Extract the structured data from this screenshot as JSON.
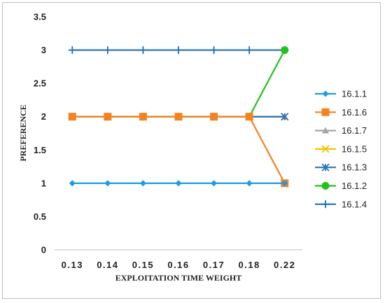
{
  "chart_data": {
    "type": "line",
    "title": "",
    "xlabel": "EXPLOITATION TIME  WEIGHT",
    "ylabel": "PREFERENCE",
    "categories": [
      "0.13",
      "0.14",
      "0.15",
      "0.16",
      "0.17",
      "0.18",
      "0.22"
    ],
    "ylim": [
      0,
      3.5
    ],
    "yticks": [
      "0",
      "0.5",
      "1",
      "1.5",
      "2",
      "2.5",
      "3",
      "3.5"
    ],
    "grid": false,
    "legend": "right",
    "series": [
      {
        "name": "16.1.1",
        "color": "#1e9be3",
        "marker": "diamond",
        "values": [
          1,
          1,
          1,
          1,
          1,
          1,
          1
        ]
      },
      {
        "name": "16.1.6",
        "color": "#f58220",
        "marker": "square",
        "values": [
          2,
          2,
          2,
          2,
          2,
          2,
          1
        ]
      },
      {
        "name": "16.1.7",
        "color": "#a5a5a5",
        "marker": "triangle",
        "values": [
          2,
          2,
          2,
          2,
          2,
          2,
          2
        ]
      },
      {
        "name": "16.1.5",
        "color": "#f2c200",
        "marker": "x",
        "values": [
          2,
          2,
          2,
          2,
          2,
          2,
          2
        ]
      },
      {
        "name": "16.1.3",
        "color": "#2e75b6",
        "marker": "star",
        "values": [
          2,
          2,
          2,
          2,
          2,
          2,
          2
        ]
      },
      {
        "name": "16.1.2",
        "color": "#22c21d",
        "marker": "circle",
        "values": [
          2,
          2,
          2,
          2,
          2,
          2,
          3
        ]
      },
      {
        "name": "16.1.4",
        "color": "#1f6fb3",
        "marker": "plus",
        "values": [
          3,
          3,
          3,
          3,
          3,
          3,
          3
        ]
      }
    ],
    "draw_order": [
      "16.1.4",
      "16.1.7",
      "16.1.5",
      "16.1.3",
      "16.1.2",
      "16.1.6",
      "16.1.1"
    ]
  }
}
